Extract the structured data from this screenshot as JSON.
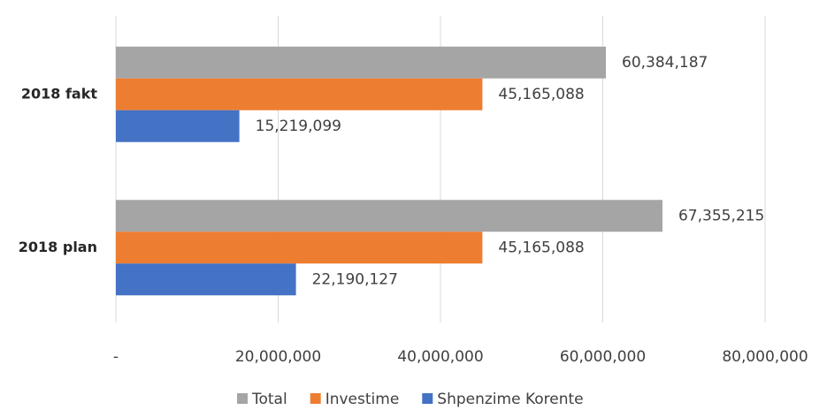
{
  "chart_data": {
    "type": "bar",
    "orientation": "horizontal",
    "categories": [
      "2018 fakt",
      "2018 plan"
    ],
    "series": [
      {
        "name": "Total",
        "color": "#a5a5a5",
        "values": [
          60384187,
          67355215
        ],
        "value_labels": [
          "60,384,187",
          "67,355,215"
        ]
      },
      {
        "name": "Investime",
        "color": "#ed7d31",
        "values": [
          45165088,
          45165088
        ],
        "value_labels": [
          "45,165,088",
          "45,165,088"
        ]
      },
      {
        "name": "Shpenzime Korente",
        "color": "#4472c4",
        "values": [
          15219099,
          22190127
        ],
        "value_labels": [
          "15,219,099",
          "22,190,127"
        ]
      }
    ],
    "xlim": [
      0,
      80000000
    ],
    "xticks": [
      {
        "value": 0,
        "label": "-"
      },
      {
        "value": 20000000,
        "label": "20,000,000"
      },
      {
        "value": 40000000,
        "label": "40,000,000"
      },
      {
        "value": 60000000,
        "label": "60,000,000"
      },
      {
        "value": 80000000,
        "label": "80,000,000"
      }
    ],
    "grid": true,
    "legend": "bottom"
  }
}
